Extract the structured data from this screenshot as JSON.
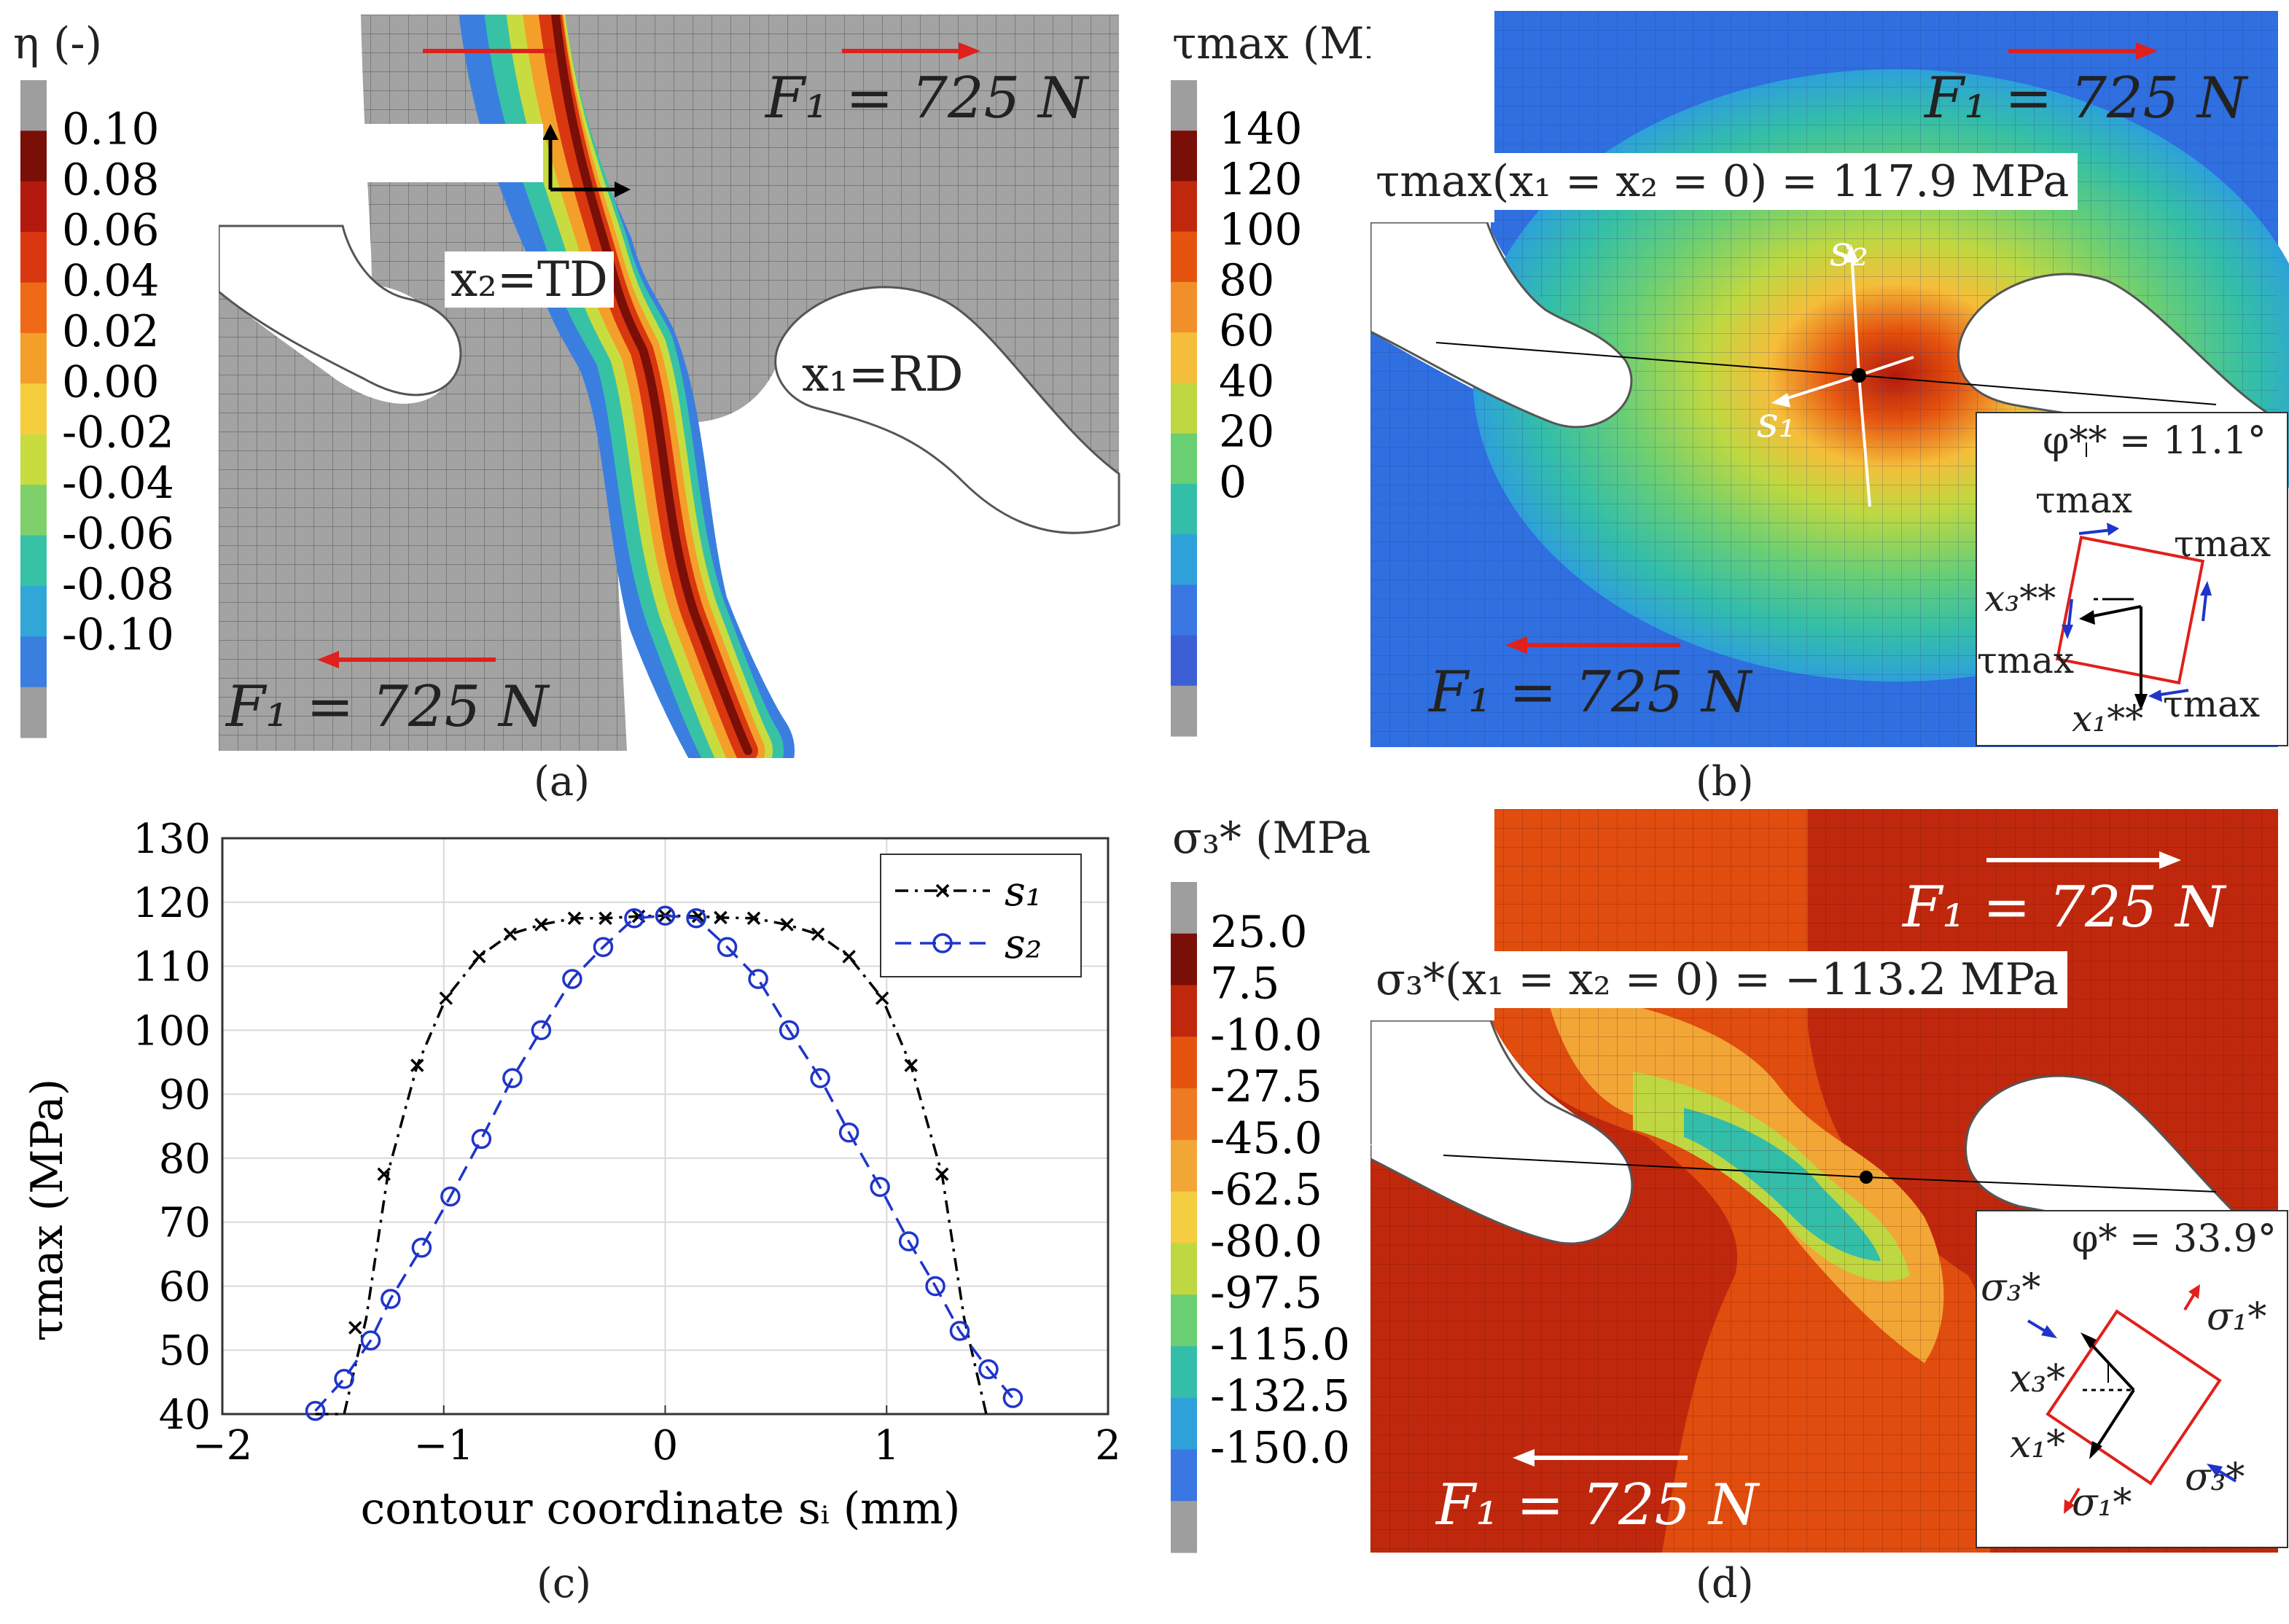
{
  "panels": {
    "a": {
      "label": "(a)",
      "cbar_title": "η (-)",
      "cbar_ticks": [
        "0.10",
        "0.08",
        "0.06",
        "0.04",
        "0.02",
        "0.00",
        "-0.02",
        "-0.04",
        "-0.06",
        "-0.08",
        "-0.10"
      ],
      "cbar_colors": [
        "#9e9e9e",
        "#7a0f08",
        "#b3190c",
        "#d9370f",
        "#ee6a17",
        "#f59f2b",
        "#f6cd3d",
        "#c9dc3f",
        "#7ed16a",
        "#38c2a5",
        "#31a7d8",
        "#3a7fe0",
        "#9e9e9e"
      ],
      "force_top": "F₁ = 725 N",
      "force_bottom": "F₁ = 725 N",
      "axis_x2": "x₂=TD",
      "axis_x1": "x₁=RD"
    },
    "b": {
      "label": "(b)",
      "cbar_title": "τmax (MPa)",
      "cbar_ticks": [
        "140",
        "120",
        "100",
        "80",
        "60",
        "40",
        "20",
        "0"
      ],
      "cbar_colors": [
        "#9e9e9e",
        "#7a0f08",
        "#c0280d",
        "#e5540f",
        "#f1902a",
        "#f5be3a",
        "#bfd841",
        "#6bcf73",
        "#33bea9",
        "#2ea1da",
        "#3a77e3",
        "#3d5fd6",
        "#9e9e9e"
      ],
      "annotation": "τmax(x₁ = x₂ = 0) = 117.9 MPa",
      "force_top": "F₁ = 725 N",
      "force_bottom": "F₁ = 725 N",
      "s1": "s₁",
      "s2": "s₂",
      "inset": {
        "angle": "φ** = 11.1°",
        "tau_top": "τmax",
        "tau_right": "τmax",
        "tau_left": "τmax",
        "tau_bottom": "τmax",
        "x3": "x₃**",
        "x1": "x₁**"
      }
    },
    "c": {
      "label": "(c)"
    },
    "d": {
      "label": "(d)",
      "cbar_title": "σ₃* (MPa)",
      "cbar_ticks": [
        "25.0",
        "7.5",
        "-10.0",
        "-27.5",
        "-45.0",
        "-62.5",
        "-80.0",
        "-97.5",
        "-115.0",
        "-132.5",
        "-150.0"
      ],
      "cbar_colors": [
        "#9e9e9e",
        "#7a0f08",
        "#c0280d",
        "#e5540f",
        "#ee7a22",
        "#f2a636",
        "#f4cd40",
        "#bfd841",
        "#6bcf73",
        "#33bea9",
        "#2ea1da",
        "#3a77e3",
        "#9e9e9e"
      ],
      "annotation": "σ₃*(x₁ = x₂ = 0) = −113.2 MPa",
      "force_top": "F₁ = 725 N",
      "force_bottom": "F₁ = 725 N",
      "inset": {
        "angle": "φ* = 33.9°",
        "s3_top": "σ₃*",
        "s1_top": "σ₁*",
        "x3": "x₃*",
        "x1": "x₁*",
        "s1_bottom": "σ₁*",
        "s3_bottom": "σ₃*"
      }
    }
  },
  "chart_data": {
    "type": "line",
    "title": "",
    "xlabel": "contour coordinate sᵢ (mm)",
    "ylabel": "τmax (MPa)",
    "xlim": [
      -2,
      2
    ],
    "ylim": [
      40,
      130
    ],
    "xticks": [
      -2,
      -1,
      0,
      1,
      2
    ],
    "yticks": [
      40,
      50,
      60,
      70,
      80,
      90,
      100,
      110,
      120,
      130
    ],
    "grid": true,
    "legend_position": "top-right",
    "series": [
      {
        "name": "s₁",
        "marker": "x",
        "style": "dash-dot",
        "color": "#000000",
        "x": [
          -1.4,
          -1.27,
          -1.12,
          -0.99,
          -0.84,
          -0.7,
          -0.56,
          -0.41,
          -0.27,
          -0.12,
          0.0,
          0.15,
          0.25,
          0.4,
          0.55,
          0.69,
          0.83,
          0.98,
          1.11,
          1.25
        ],
        "y": [
          53.5,
          77.5,
          94.5,
          105.0,
          111.5,
          115.0,
          116.5,
          117.5,
          117.5,
          117.8,
          117.9,
          117.8,
          117.6,
          117.5,
          116.5,
          115.0,
          111.5,
          105.0,
          94.5,
          77.5
        ],
        "curve_x": [
          -1.58,
          -1.45,
          -1.35,
          -1.25,
          -1.12,
          -0.99,
          -0.84,
          -0.7,
          -0.56,
          -0.41,
          -0.27,
          -0.12,
          0.0,
          0.15,
          0.25,
          0.4,
          0.55,
          0.69,
          0.83,
          0.98,
          1.11,
          1.25,
          1.35,
          1.45
        ],
        "curve_y": [
          40,
          40,
          55,
          78,
          94.5,
          105.0,
          111.5,
          115.0,
          116.5,
          117.5,
          117.5,
          117.8,
          117.9,
          117.8,
          117.6,
          117.5,
          116.5,
          115.0,
          111.5,
          105.0,
          94.5,
          77.5,
          55,
          40
        ]
      },
      {
        "name": "s₂",
        "marker": "o",
        "style": "dashed",
        "color": "#1f35c9",
        "x": [
          -1.58,
          -1.45,
          -1.33,
          -1.24,
          -1.1,
          -0.97,
          -0.83,
          -0.69,
          -0.56,
          -0.42,
          -0.28,
          -0.14,
          0.0,
          0.14,
          0.28,
          0.42,
          0.56,
          0.7,
          0.83,
          0.97,
          1.1,
          1.22,
          1.33,
          1.46,
          1.57
        ],
        "y": [
          40.5,
          45.5,
          51.5,
          58.0,
          66.0,
          74.0,
          83.0,
          92.5,
          100.0,
          108.0,
          113.0,
          117.5,
          117.9,
          117.5,
          113.0,
          108.0,
          100.0,
          92.5,
          84.0,
          75.5,
          67.0,
          60.0,
          53.0,
          47.0,
          42.5
        ]
      }
    ]
  }
}
